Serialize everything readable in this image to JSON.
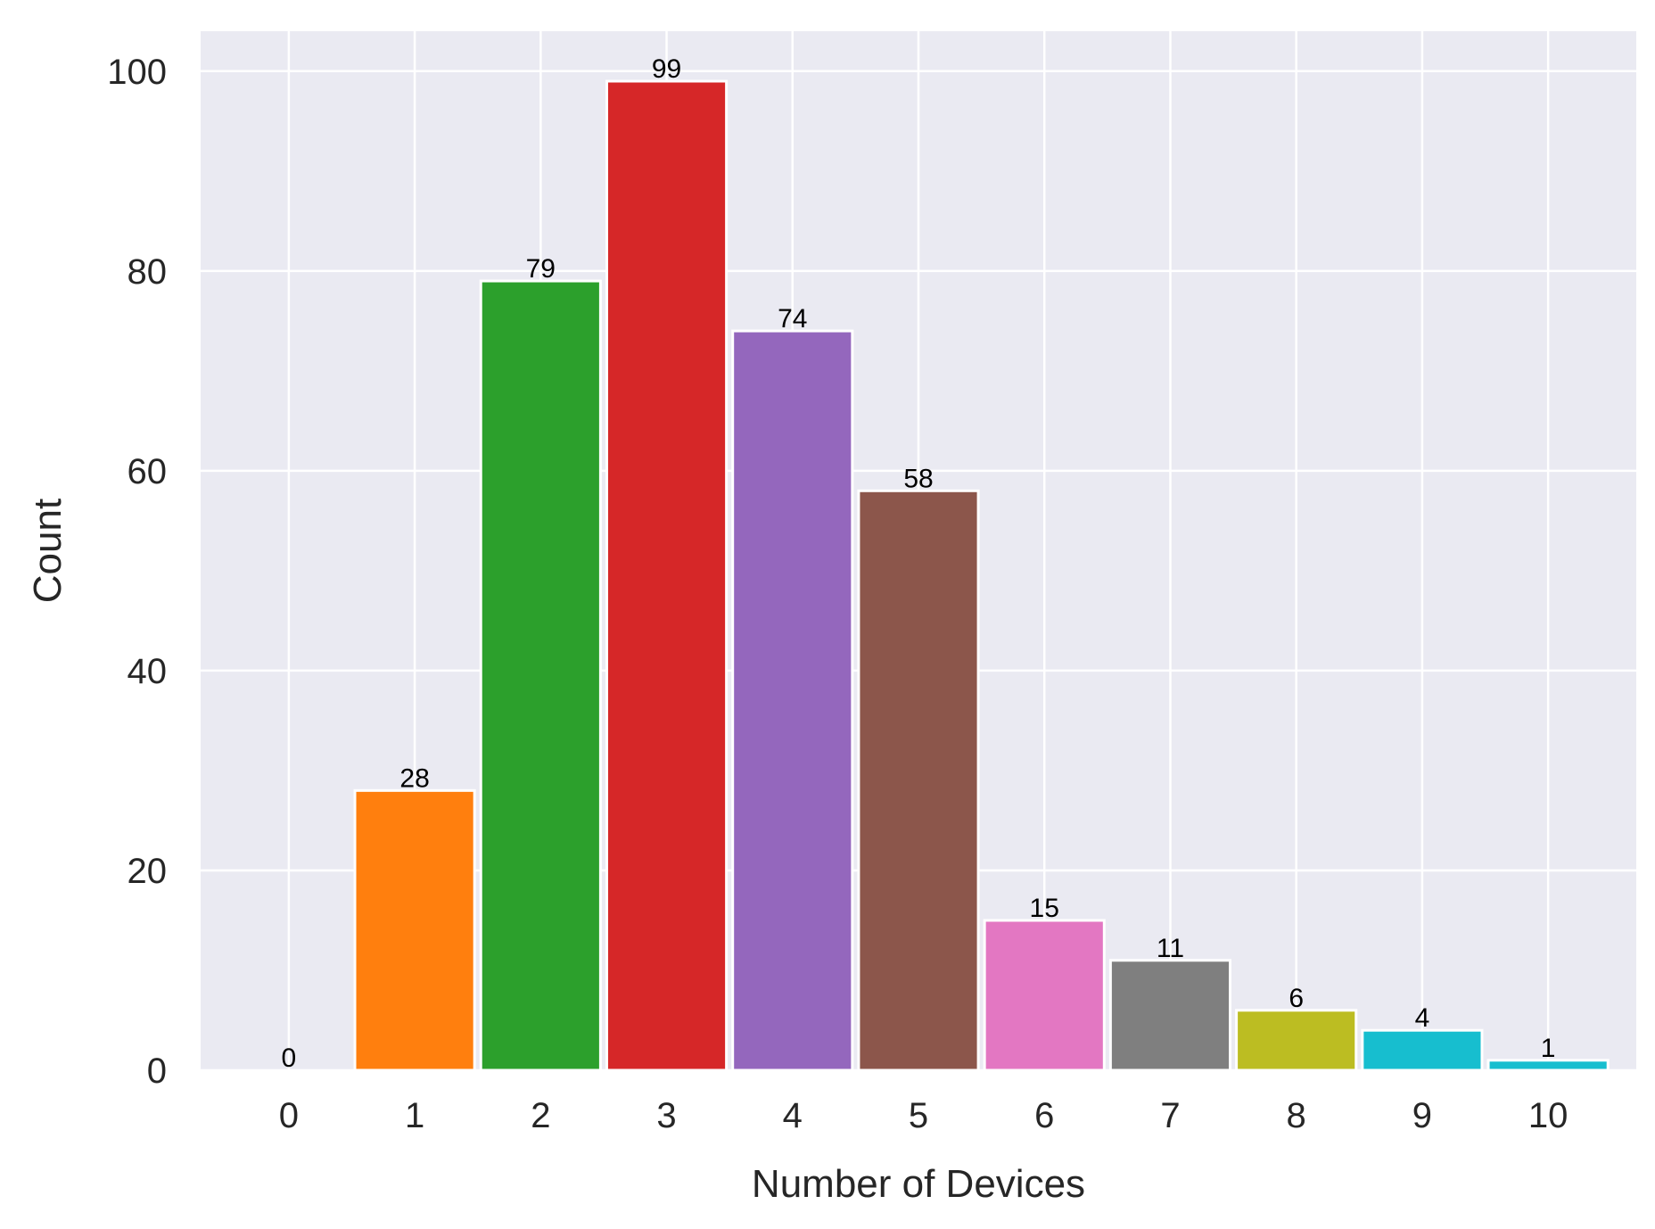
{
  "chart_data": {
    "type": "bar",
    "title": "",
    "xlabel": "Number of Devices",
    "ylabel": "Count",
    "categories": [
      "0",
      "1",
      "2",
      "3",
      "4",
      "5",
      "6",
      "7",
      "8",
      "9",
      "10"
    ],
    "values": [
      0,
      28,
      79,
      99,
      74,
      58,
      15,
      11,
      6,
      4,
      1
    ],
    "value_labels": [
      "0",
      "28",
      "79",
      "99",
      "74",
      "58",
      "15",
      "11",
      "6",
      "4",
      "1"
    ],
    "colors": [
      "#1f77b4",
      "#ff7f0e",
      "#2ca02c",
      "#d62728",
      "#9467bd",
      "#8c564b",
      "#e377c2",
      "#7f7f7f",
      "#bcbd22",
      "#17becf",
      "#17becf"
    ],
    "yticks": [
      0,
      20,
      40,
      60,
      80,
      100
    ],
    "ytick_labels": [
      "0",
      "20",
      "40",
      "60",
      "80",
      "100"
    ],
    "ylim": [
      0,
      104
    ],
    "xlim": [
      -0.7,
      10.7
    ],
    "grid": true,
    "background_color": "#eaeaf2",
    "grid_color": "#ffffff"
  }
}
